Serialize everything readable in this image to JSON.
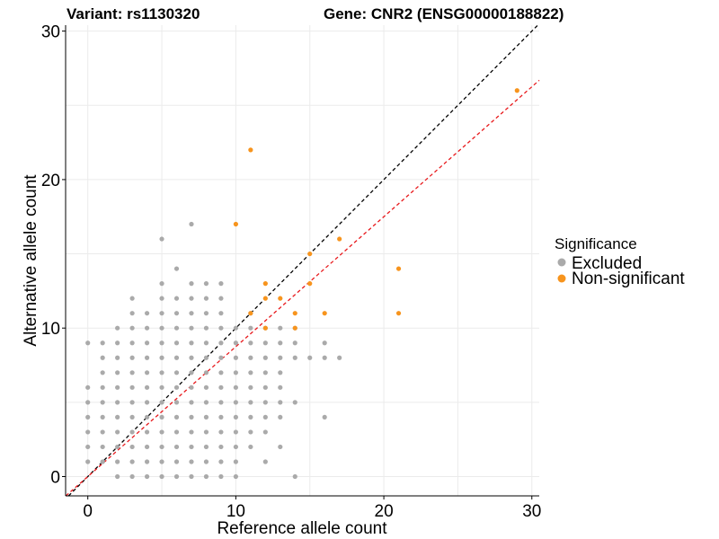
{
  "chart_data": {
    "type": "scatter",
    "title_left": "Variant: rs1130320",
    "title_right": "Gene: CNR2 (ENSG00000188822)",
    "xlabel": "Reference allele count",
    "ylabel": "Alternative allele count",
    "xlim": [
      -1.5,
      30.5
    ],
    "ylim": [
      -1.3,
      30.4
    ],
    "xticks": [
      0,
      10,
      20,
      30
    ],
    "yticks": [
      0,
      10,
      20,
      30
    ],
    "grid": true,
    "legend": {
      "title": "Significance",
      "position": "right",
      "entries": [
        {
          "label": "Excluded",
          "color": "#aaaaaa"
        },
        {
          "label": "Non-significant",
          "color": "#f7941d"
        }
      ]
    },
    "reference_lines": [
      {
        "name": "identity",
        "slope": 1.0,
        "intercept": 0,
        "color": "#000000",
        "dash": true
      },
      {
        "name": "expected ratio",
        "slope": 0.875,
        "intercept": 0,
        "color": "#e8191c",
        "dash": true
      }
    ],
    "series": [
      {
        "name": "Excluded",
        "color": "#aaaaaa",
        "points": [
          [
            0,
            1
          ],
          [
            0,
            2
          ],
          [
            0,
            3
          ],
          [
            0,
            4
          ],
          [
            0,
            5
          ],
          [
            0,
            6
          ],
          [
            0,
            9
          ],
          [
            1,
            1
          ],
          [
            1,
            2
          ],
          [
            1,
            3
          ],
          [
            1,
            4
          ],
          [
            1,
            5
          ],
          [
            1,
            6
          ],
          [
            1,
            7
          ],
          [
            1,
            8
          ],
          [
            1,
            9
          ],
          [
            2,
            0
          ],
          [
            2,
            1
          ],
          [
            2,
            2
          ],
          [
            2,
            3
          ],
          [
            2,
            4
          ],
          [
            2,
            5
          ],
          [
            2,
            6
          ],
          [
            2,
            7
          ],
          [
            2,
            8
          ],
          [
            2,
            9
          ],
          [
            2,
            10
          ],
          [
            3,
            0
          ],
          [
            3,
            1
          ],
          [
            3,
            2
          ],
          [
            3,
            3
          ],
          [
            3,
            4
          ],
          [
            3,
            5
          ],
          [
            3,
            6
          ],
          [
            3,
            7
          ],
          [
            3,
            8
          ],
          [
            3,
            9
          ],
          [
            3,
            10
          ],
          [
            3,
            11
          ],
          [
            3,
            12
          ],
          [
            4,
            0
          ],
          [
            4,
            1
          ],
          [
            4,
            2
          ],
          [
            4,
            3
          ],
          [
            4,
            4
          ],
          [
            4,
            5
          ],
          [
            4,
            6
          ],
          [
            4,
            7
          ],
          [
            4,
            8
          ],
          [
            4,
            9
          ],
          [
            4,
            10
          ],
          [
            4,
            11
          ],
          [
            5,
            0
          ],
          [
            5,
            1
          ],
          [
            5,
            2
          ],
          [
            5,
            3
          ],
          [
            5,
            4
          ],
          [
            5,
            5
          ],
          [
            5,
            6
          ],
          [
            5,
            7
          ],
          [
            5,
            8
          ],
          [
            5,
            9
          ],
          [
            5,
            10
          ],
          [
            5,
            11
          ],
          [
            5,
            12
          ],
          [
            5,
            13
          ],
          [
            5,
            16
          ],
          [
            6,
            0
          ],
          [
            6,
            1
          ],
          [
            6,
            2
          ],
          [
            6,
            3
          ],
          [
            6,
            4
          ],
          [
            6,
            5
          ],
          [
            6,
            6
          ],
          [
            6,
            7
          ],
          [
            6,
            8
          ],
          [
            6,
            9
          ],
          [
            6,
            10
          ],
          [
            6,
            11
          ],
          [
            6,
            12
          ],
          [
            6,
            14
          ],
          [
            7,
            0
          ],
          [
            7,
            1
          ],
          [
            7,
            2
          ],
          [
            7,
            3
          ],
          [
            7,
            4
          ],
          [
            7,
            5
          ],
          [
            7,
            6
          ],
          [
            7,
            7
          ],
          [
            7,
            8
          ],
          [
            7,
            9
          ],
          [
            7,
            10
          ],
          [
            7,
            11
          ],
          [
            7,
            12
          ],
          [
            7,
            13
          ],
          [
            7,
            17
          ],
          [
            8,
            0
          ],
          [
            8,
            1
          ],
          [
            8,
            2
          ],
          [
            8,
            3
          ],
          [
            8,
            4
          ],
          [
            8,
            5
          ],
          [
            8,
            6
          ],
          [
            8,
            7
          ],
          [
            8,
            8
          ],
          [
            8,
            9
          ],
          [
            8,
            10
          ],
          [
            8,
            11
          ],
          [
            8,
            12
          ],
          [
            8,
            13
          ],
          [
            9,
            0
          ],
          [
            9,
            1
          ],
          [
            9,
            2
          ],
          [
            9,
            3
          ],
          [
            9,
            4
          ],
          [
            9,
            5
          ],
          [
            9,
            6
          ],
          [
            9,
            7
          ],
          [
            9,
            8
          ],
          [
            9,
            9
          ],
          [
            9,
            10
          ],
          [
            9,
            11
          ],
          [
            9,
            12
          ],
          [
            9,
            13
          ],
          [
            10,
            0
          ],
          [
            10,
            1
          ],
          [
            10,
            2
          ],
          [
            10,
            3
          ],
          [
            10,
            4
          ],
          [
            10,
            5
          ],
          [
            10,
            6
          ],
          [
            10,
            7
          ],
          [
            10,
            8
          ],
          [
            10,
            9
          ],
          [
            10,
            10
          ],
          [
            11,
            2
          ],
          [
            11,
            3
          ],
          [
            11,
            4
          ],
          [
            11,
            5
          ],
          [
            11,
            6
          ],
          [
            11,
            7
          ],
          [
            11,
            8
          ],
          [
            11,
            9
          ],
          [
            11,
            10
          ],
          [
            11,
            11
          ],
          [
            12,
            1
          ],
          [
            12,
            3
          ],
          [
            12,
            4
          ],
          [
            12,
            5
          ],
          [
            12,
            6
          ],
          [
            12,
            7
          ],
          [
            12,
            8
          ],
          [
            12,
            9
          ],
          [
            12,
            10
          ],
          [
            13,
            2
          ],
          [
            13,
            4
          ],
          [
            13,
            5
          ],
          [
            13,
            6
          ],
          [
            13,
            7
          ],
          [
            13,
            8
          ],
          [
            13,
            9
          ],
          [
            13,
            10
          ],
          [
            14,
            0
          ],
          [
            14,
            5
          ],
          [
            14,
            8
          ],
          [
            14,
            9
          ],
          [
            14,
            10
          ],
          [
            15,
            8
          ],
          [
            16,
            4
          ],
          [
            16,
            8
          ],
          [
            16,
            9
          ],
          [
            17,
            8
          ]
        ]
      },
      {
        "name": "Non-significant",
        "color": "#f7941d",
        "points": [
          [
            29,
            26
          ],
          [
            11,
            22
          ],
          [
            10,
            17
          ],
          [
            17,
            16
          ],
          [
            15,
            15
          ],
          [
            21,
            14
          ],
          [
            12,
            13
          ],
          [
            15,
            13
          ],
          [
            12,
            12
          ],
          [
            13,
            12
          ],
          [
            11,
            11
          ],
          [
            14,
            11
          ],
          [
            16,
            11
          ],
          [
            21,
            11
          ],
          [
            12,
            10
          ],
          [
            14,
            10
          ]
        ]
      }
    ]
  }
}
